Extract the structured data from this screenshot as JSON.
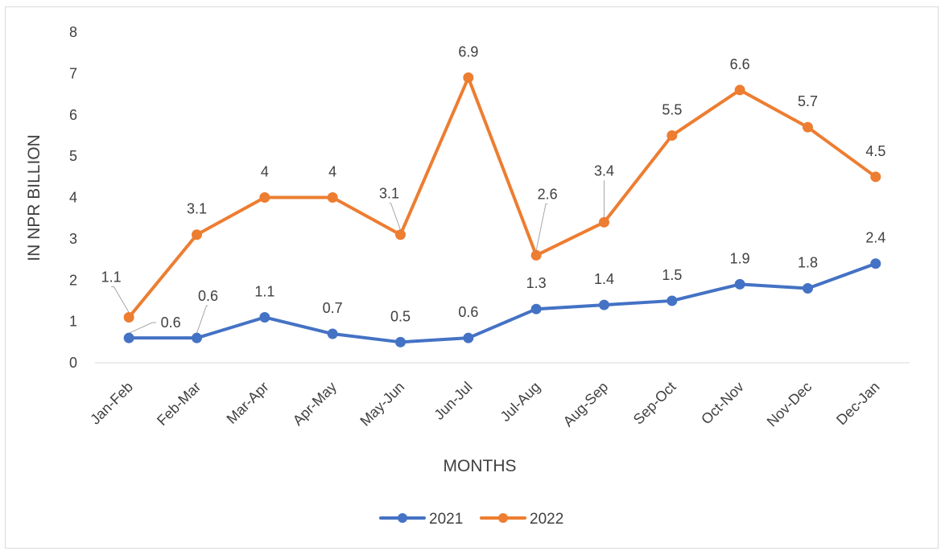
{
  "chart_data": {
    "type": "line",
    "title": "",
    "xlabel": "MONTHS",
    "ylabel": "IN NPR BILLION",
    "ylim": [
      0,
      8
    ],
    "yticks": [
      0,
      1,
      2,
      3,
      4,
      5,
      6,
      7,
      8
    ],
    "grid": false,
    "legend_position": "bottom",
    "categories": [
      "Jan-Feb",
      "Feb-Mar",
      "Mar-Apr",
      "Apr-May",
      "May-Jun",
      "Jun-Jul",
      "Jul-Aug",
      "Aug-Sep",
      "Sep-Oct",
      "Oct-Nov",
      "Nov-Dec",
      "Dec-Jan"
    ],
    "series": [
      {
        "name": "2021",
        "color": "#4472C4",
        "values": [
          0.6,
          0.6,
          1.1,
          0.7,
          0.5,
          0.6,
          1.3,
          1.4,
          1.5,
          1.9,
          1.8,
          2.4
        ],
        "labels": [
          "0.6",
          "0.6",
          "1.1",
          "0.7",
          "0.5",
          "0.6",
          "1.3",
          "1.4",
          "1.5",
          "1.9",
          "1.8",
          "2.4"
        ]
      },
      {
        "name": "2022",
        "color": "#ED7D31",
        "values": [
          1.1,
          3.1,
          4,
          4,
          3.1,
          6.9,
          2.6,
          3.4,
          5.5,
          6.6,
          5.7,
          4.5
        ],
        "labels": [
          "1.1",
          "3.1",
          "4",
          "4",
          "3.1",
          "6.9",
          "2.6",
          "3.4",
          "5.5",
          "6.6",
          "5.7",
          "4.5"
        ]
      }
    ]
  }
}
